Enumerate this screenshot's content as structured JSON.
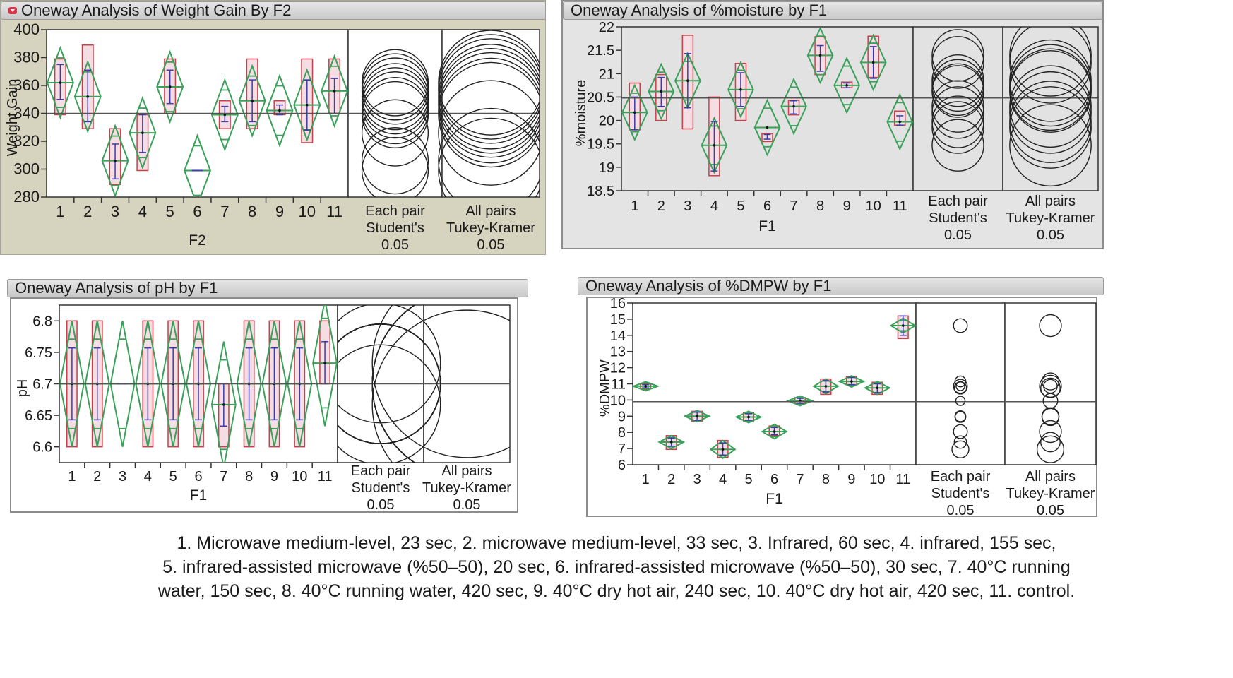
{
  "colors": {
    "diamond": "#3aa05a",
    "quantile_box": "#c8404a",
    "box_fill": "#f6dde3",
    "std_dev": "#3c3ca8",
    "grand_mean": "#555555",
    "circle": "#222222",
    "olive_bg": "#d6d3bf",
    "gray_bg": "#e4e4e4"
  },
  "caption": {
    "lines": [
      "1. Microwave medium-level, 23 sec, 2. microwave medium-level, 33 sec, 3. Infrared, 60 sec, 4. infrared, 155 sec,",
      "5. infrared-assisted microwave (%50–50), 20 sec, 6. infrared-assisted microwave (%50–50), 30 sec, 7. 40°C running",
      "water, 150 sec, 8. 40°C running water, 420 sec, 9. 40°C dry hot air, 240 sec, 10. 40°C dry hot air, 420 sec, 11. control."
    ]
  },
  "chart_data": [
    {
      "type": "oneway",
      "title": "Oneway Analysis of Weight Gain By F2",
      "xlabel": "F2",
      "ylabel": "Weight Gain",
      "ylim": [
        280,
        400
      ],
      "yticks": [
        "280",
        "300",
        "320",
        "340",
        "360",
        "380",
        "400"
      ],
      "categories": [
        "1",
        "2",
        "3",
        "4",
        "5",
        "6",
        "7",
        "8",
        "9",
        "10",
        "11"
      ],
      "grand_mean": 340,
      "means": [
        362,
        352,
        306,
        326,
        359,
        299,
        339,
        349,
        342,
        346,
        356
      ],
      "diamond_half_width": [
        25,
        25,
        25,
        25,
        25,
        25,
        25,
        25,
        25,
        25,
        25
      ],
      "box_low": [
        339,
        329,
        289,
        299,
        340,
        null,
        329,
        329,
        339,
        319,
        340
      ],
      "box_high": [
        379,
        389,
        329,
        339,
        379,
        null,
        349,
        379,
        349,
        379,
        379
      ],
      "sd_low": [
        350,
        334,
        293,
        312,
        347,
        null,
        334,
        334,
        339,
        328,
        340
      ],
      "sd_high": [
        375,
        371,
        318,
        339,
        371,
        null,
        345,
        364,
        346,
        364,
        365
      ],
      "comparison_labels": {
        "student": [
          "Each pair",
          "Student's",
          "0.05"
        ],
        "tukey": [
          "All pairs",
          "Tukey-Kramer",
          "0.05"
        ]
      }
    },
    {
      "type": "oneway",
      "title": "Oneway Analysis of %moisture by F1",
      "xlabel": "F1",
      "ylabel": "%moisture",
      "ylim": [
        18.5,
        22
      ],
      "yticks": [
        "18.5",
        "19",
        "19.5",
        "20",
        "20.5",
        "21",
        "21.5",
        "22"
      ],
      "categories": [
        "1",
        "2",
        "3",
        "4",
        "5",
        "6",
        "7",
        "8",
        "9",
        "10",
        "11"
      ],
      "grand_mean": 20.48,
      "means": [
        20.17,
        20.62,
        20.85,
        19.47,
        20.66,
        19.85,
        20.3,
        21.39,
        20.75,
        21.24,
        19.97
      ],
      "diamond_half_width": [
        0.58,
        0.58,
        0.58,
        0.58,
        0.58,
        0.58,
        0.58,
        0.58,
        0.58,
        0.58,
        0.58
      ],
      "box_low": [
        19.8,
        20.0,
        19.82,
        18.82,
        20.0,
        19.55,
        20.12,
        20.98,
        20.7,
        20.92,
        19.9
      ],
      "box_high": [
        20.8,
        20.98,
        21.82,
        20.5,
        21.22,
        19.72,
        20.43,
        21.79,
        20.82,
        21.8,
        20.2
      ],
      "sd_low": [
        19.8,
        20.3,
        20.27,
        18.92,
        20.3,
        19.6,
        20.14,
        21.05,
        20.7,
        20.9,
        19.9
      ],
      "sd_high": [
        20.5,
        20.92,
        21.43,
        19.98,
        21.02,
        19.7,
        20.42,
        21.6,
        20.8,
        21.58,
        20.1
      ],
      "comparison_labels": {
        "student": [
          "Each pair",
          "Student's",
          "0.05"
        ],
        "tukey": [
          "All pairs",
          "Tukey-Kramer",
          "0.05"
        ]
      }
    },
    {
      "type": "oneway",
      "title": "Oneway Analysis of pH by F1",
      "xlabel": "F1",
      "ylabel": "pH",
      "ylim": [
        6.575,
        6.825
      ],
      "yticks": [
        "6.6",
        "6.65",
        "6.7",
        "6.75",
        "6.8"
      ],
      "categories": [
        "1",
        "2",
        "3",
        "4",
        "5",
        "6",
        "7",
        "8",
        "9",
        "10",
        "11"
      ],
      "grand_mean": 6.7,
      "means": [
        6.7,
        6.7,
        6.7,
        6.7,
        6.7,
        6.7,
        6.667,
        6.7,
        6.7,
        6.7,
        6.733
      ],
      "diamond_half_width": [
        0.1,
        0.1,
        0.1,
        0.1,
        0.1,
        0.1,
        0.1,
        0.1,
        0.1,
        0.1,
        0.1
      ],
      "box_low": [
        6.6,
        6.6,
        null,
        6.6,
        6.6,
        6.6,
        6.6,
        6.6,
        6.6,
        6.6,
        6.7
      ],
      "box_high": [
        6.8,
        6.8,
        null,
        6.8,
        6.8,
        6.8,
        6.7,
        6.8,
        6.8,
        6.8,
        6.8
      ],
      "sd_low": [
        6.643,
        6.643,
        null,
        6.643,
        6.643,
        6.643,
        6.633,
        6.643,
        6.643,
        6.643,
        6.7
      ],
      "sd_high": [
        6.757,
        6.757,
        null,
        6.757,
        6.757,
        6.757,
        6.7,
        6.757,
        6.757,
        6.757,
        6.767
      ],
      "comparison_labels": {
        "student": [
          "Each pair",
          "Student's",
          "0.05"
        ],
        "tukey": [
          "All pairs",
          "Tukey-Kramer",
          "0.05"
        ]
      }
    },
    {
      "type": "oneway",
      "title": "Oneway Analysis of %DMPW by F1",
      "xlabel": "F1",
      "ylabel": "%DMPW",
      "ylim": [
        6,
        16
      ],
      "yticks": [
        "6",
        "7",
        "8",
        "9",
        "10",
        "11",
        "12",
        "13",
        "14",
        "15",
        "16"
      ],
      "categories": [
        "1",
        "2",
        "3",
        "4",
        "5",
        "6",
        "7",
        "8",
        "9",
        "10",
        "11"
      ],
      "grand_mean": 9.9,
      "means": [
        10.85,
        7.4,
        9.0,
        6.95,
        8.95,
        8.05,
        9.95,
        10.85,
        11.15,
        10.75,
        14.6
      ],
      "diamond_half_width": [
        0.28,
        0.4,
        0.35,
        0.55,
        0.35,
        0.45,
        0.3,
        0.45,
        0.35,
        0.4,
        0.45
      ],
      "box_low": [
        10.7,
        6.95,
        8.7,
        6.45,
        8.7,
        7.8,
        9.8,
        10.35,
        10.95,
        10.35,
        13.8
      ],
      "box_high": [
        11.0,
        7.8,
        9.3,
        7.5,
        9.2,
        8.4,
        10.15,
        11.3,
        11.45,
        11.1,
        15.2
      ],
      "sd_low": [
        10.75,
        7.15,
        8.75,
        6.6,
        8.75,
        7.85,
        9.8,
        10.5,
        10.95,
        10.45,
        14.0
      ],
      "sd_high": [
        10.95,
        7.65,
        9.25,
        7.35,
        9.15,
        8.3,
        10.1,
        11.2,
        11.4,
        11.0,
        15.2
      ],
      "comparison_labels": {
        "student": [
          "Each pair",
          "Student's",
          "0.05"
        ],
        "tukey": [
          "All pairs",
          "Tukey-Kramer",
          "0.05"
        ]
      }
    }
  ]
}
